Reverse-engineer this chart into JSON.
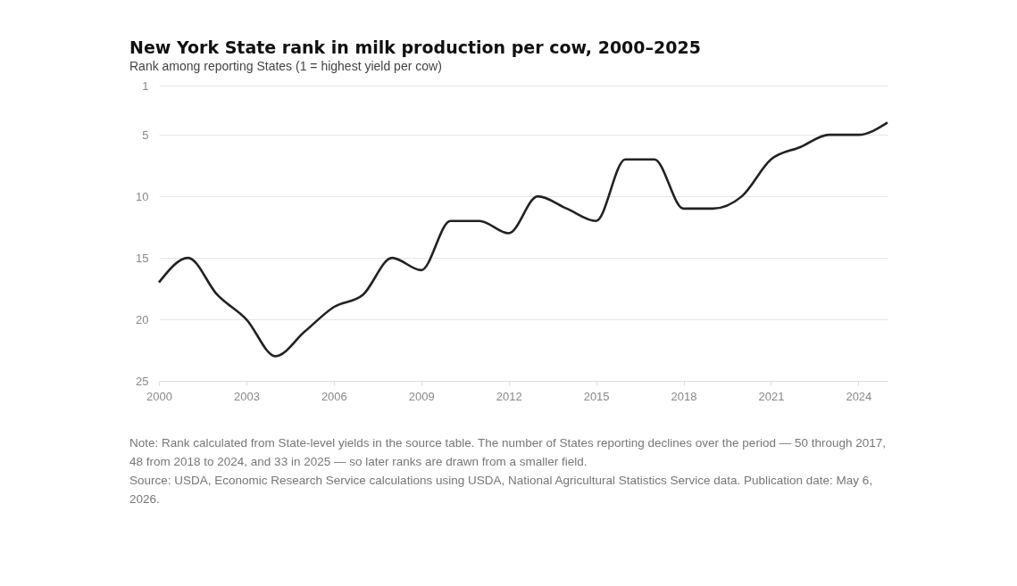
{
  "chart_data": {
    "type": "line",
    "title": "New York State rank in milk production per cow, 2000–2025",
    "subtitle": "Rank among reporting States (1 = highest yield per cow)",
    "x": [
      2000,
      2001,
      2002,
      2003,
      2004,
      2005,
      2006,
      2007,
      2008,
      2009,
      2010,
      2011,
      2012,
      2013,
      2014,
      2015,
      2016,
      2017,
      2018,
      2019,
      2020,
      2021,
      2022,
      2023,
      2024,
      2025
    ],
    "series": [
      {
        "color": "#222222",
        "values": [
          17,
          15,
          18,
          20,
          23,
          21,
          19,
          18,
          15,
          16,
          12,
          12,
          13,
          10,
          11,
          12,
          7,
          7,
          11,
          11,
          10,
          7,
          6,
          5,
          5,
          4
        ]
      }
    ],
    "xlim": [
      2000,
      2025
    ],
    "xticks": [
      2000,
      2003,
      2006,
      2009,
      2012,
      2015,
      2018,
      2021,
      2024
    ],
    "ylim": [
      25,
      1
    ],
    "yticks": [
      1,
      5,
      10,
      15,
      20,
      25
    ],
    "grid": "y",
    "marker": "none",
    "line_style": "solid",
    "annotations": [
      "Note: Rank calculated from State-level yields in the source table. The number of States reporting declines over the period — 50 through 2017, 48 from 2018 to 2024, and 33 in 2025 — so later ranks are drawn from a smaller field.",
      "Source: USDA, Economic Research Service calculations using USDA, National Agricultural Statistics Service data. Publication date: May 6, 2026."
    ]
  }
}
